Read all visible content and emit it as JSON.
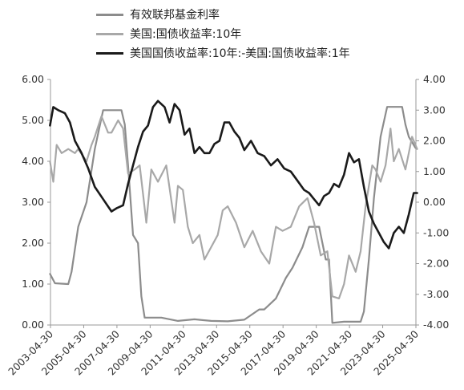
{
  "chart_data": {
    "type": "line",
    "legend": [
      {
        "name": "有效联邦基金利率",
        "color": "#8c8c8c"
      },
      {
        "name": "美国:国债收益率:10年",
        "color": "#a8a8a8"
      },
      {
        "name": "美国国债收益率:10年:-美国:国债收益率:1年",
        "color": "#1a1a1a"
      }
    ],
    "x_ticks": [
      "2003-04-30",
      "2005-04-30",
      "2007-04-30",
      "2009-04-30",
      "2011-04-30",
      "2013-04-30",
      "2015-04-30",
      "2017-04-30",
      "2019-04-30",
      "2021-04-30",
      "2023-04-30",
      "2025-04-30"
    ],
    "y_left": {
      "min": 0,
      "max": 6,
      "ticks": [
        "0.00",
        "1.00",
        "2.00",
        "3.00",
        "4.00",
        "5.00",
        "6.00"
      ]
    },
    "y_right": {
      "min": -4,
      "max": 4,
      "ticks": [
        "-4.00",
        "-3.00",
        "-2.00",
        "-1.00",
        "0.00",
        "1.00",
        "2.00",
        "3.00",
        "4.00"
      ]
    },
    "series": [
      {
        "name": "有效联邦基金利率",
        "axis": "left",
        "color": "#8c8c8c",
        "x": [
          2003.3,
          2003.6,
          2004.4,
          2004.6,
          2005.0,
          2005.5,
          2006.0,
          2006.5,
          2006.9,
          2007.6,
          2007.8,
          2008.0,
          2008.3,
          2008.6,
          2008.8,
          2009.0,
          2010.0,
          2011.0,
          2012.0,
          2013.0,
          2014.0,
          2015.0,
          2015.9,
          2016.2,
          2016.9,
          2017.5,
          2017.9,
          2018.5,
          2018.9,
          2019.5,
          2019.9,
          2020.1,
          2020.3,
          2021.0,
          2022.0,
          2022.2,
          2022.5,
          2022.8,
          2023.2,
          2023.6,
          2024.5,
          2024.7,
          2024.9,
          2025.3
        ],
        "y": [
          1.25,
          1.02,
          1.0,
          1.3,
          2.4,
          3.0,
          4.3,
          5.25,
          5.25,
          5.25,
          4.9,
          3.9,
          2.2,
          2.0,
          0.7,
          0.18,
          0.18,
          0.1,
          0.14,
          0.1,
          0.09,
          0.13,
          0.38,
          0.38,
          0.65,
          1.15,
          1.4,
          1.9,
          2.4,
          2.4,
          1.6,
          1.6,
          0.05,
          0.08,
          0.08,
          0.33,
          1.6,
          3.1,
          4.6,
          5.33,
          5.33,
          4.9,
          4.6,
          4.33
        ]
      },
      {
        "name": "美国:国债收益率:10年",
        "axis": "left",
        "color": "#a8a8a8",
        "x": [
          2003.3,
          2003.5,
          2003.7,
          2004.0,
          2004.4,
          2004.8,
          2005.0,
          2005.5,
          2005.8,
          2006.0,
          2006.4,
          2006.8,
          2007.0,
          2007.4,
          2007.7,
          2008.0,
          2008.4,
          2008.7,
          2008.9,
          2009.1,
          2009.4,
          2009.8,
          2010.3,
          2010.8,
          2011.0,
          2011.3,
          2011.6,
          2011.9,
          2012.3,
          2012.6,
          2013.0,
          2013.4,
          2013.7,
          2014.0,
          2014.5,
          2015.0,
          2015.5,
          2016.0,
          2016.5,
          2016.9,
          2017.3,
          2017.8,
          2018.3,
          2018.8,
          2019.2,
          2019.6,
          2020.0,
          2020.3,
          2020.7,
          2021.0,
          2021.3,
          2021.7,
          2022.0,
          2022.3,
          2022.7,
          2022.9,
          2023.2,
          2023.5,
          2023.8,
          2024.0,
          2024.3,
          2024.7,
          2024.9,
          2025.1,
          2025.4
        ],
        "y": [
          4.0,
          3.5,
          4.4,
          4.2,
          4.3,
          4.2,
          4.3,
          4.0,
          4.4,
          4.6,
          5.1,
          4.7,
          4.7,
          5.0,
          4.8,
          3.7,
          3.8,
          3.9,
          3.2,
          2.5,
          3.8,
          3.5,
          3.9,
          2.5,
          3.4,
          3.3,
          2.4,
          2.0,
          2.2,
          1.6,
          1.9,
          2.2,
          2.8,
          2.9,
          2.5,
          1.9,
          2.3,
          1.8,
          1.5,
          2.4,
          2.3,
          2.4,
          2.9,
          3.1,
          2.5,
          1.7,
          1.8,
          0.7,
          0.65,
          1.0,
          1.7,
          1.3,
          1.8,
          2.9,
          3.9,
          3.8,
          3.5,
          3.9,
          4.8,
          4.0,
          4.3,
          3.8,
          4.2,
          4.6,
          4.3
        ]
      },
      {
        "name": "美国国债收益率:10年:-美国:国债收益率:1年",
        "axis": "right",
        "color": "#1a1a1a",
        "x": [
          2003.3,
          2003.5,
          2003.8,
          2004.2,
          2004.5,
          2004.8,
          2005.2,
          2005.6,
          2006.0,
          2006.5,
          2007.0,
          2007.3,
          2007.7,
          2008.0,
          2008.3,
          2008.6,
          2008.9,
          2009.2,
          2009.5,
          2009.8,
          2010.2,
          2010.5,
          2010.8,
          2011.1,
          2011.4,
          2011.7,
          2012.0,
          2012.3,
          2012.6,
          2012.9,
          2013.2,
          2013.5,
          2013.8,
          2014.1,
          2014.4,
          2014.7,
          2015.0,
          2015.4,
          2015.8,
          2016.2,
          2016.6,
          2017.0,
          2017.4,
          2017.8,
          2018.2,
          2018.6,
          2018.9,
          2019.2,
          2019.5,
          2019.8,
          2020.1,
          2020.4,
          2020.7,
          2021.0,
          2021.3,
          2021.6,
          2021.9,
          2022.2,
          2022.5,
          2022.8,
          2023.1,
          2023.4,
          2023.7,
          2024.0,
          2024.3,
          2024.6,
          2024.9,
          2025.2,
          2025.4
        ],
        "y": [
          2.5,
          3.1,
          3.0,
          2.9,
          2.6,
          2.0,
          1.6,
          1.1,
          0.5,
          0.1,
          -0.3,
          -0.2,
          -0.1,
          0.6,
          1.2,
          1.8,
          2.3,
          2.5,
          3.1,
          3.3,
          3.1,
          2.6,
          3.2,
          3.0,
          2.2,
          2.4,
          1.6,
          1.8,
          1.6,
          1.6,
          1.9,
          2.0,
          2.6,
          2.6,
          2.3,
          2.1,
          1.7,
          2.0,
          1.6,
          1.5,
          1.2,
          1.4,
          1.1,
          1.0,
          0.7,
          0.4,
          0.3,
          0.1,
          -0.1,
          0.2,
          0.3,
          0.6,
          0.5,
          0.9,
          1.6,
          1.3,
          1.4,
          0.5,
          -0.3,
          -0.7,
          -1.0,
          -1.3,
          -1.5,
          -1.0,
          -0.8,
          -1.0,
          -0.4,
          0.3,
          0.3
        ]
      }
    ]
  }
}
